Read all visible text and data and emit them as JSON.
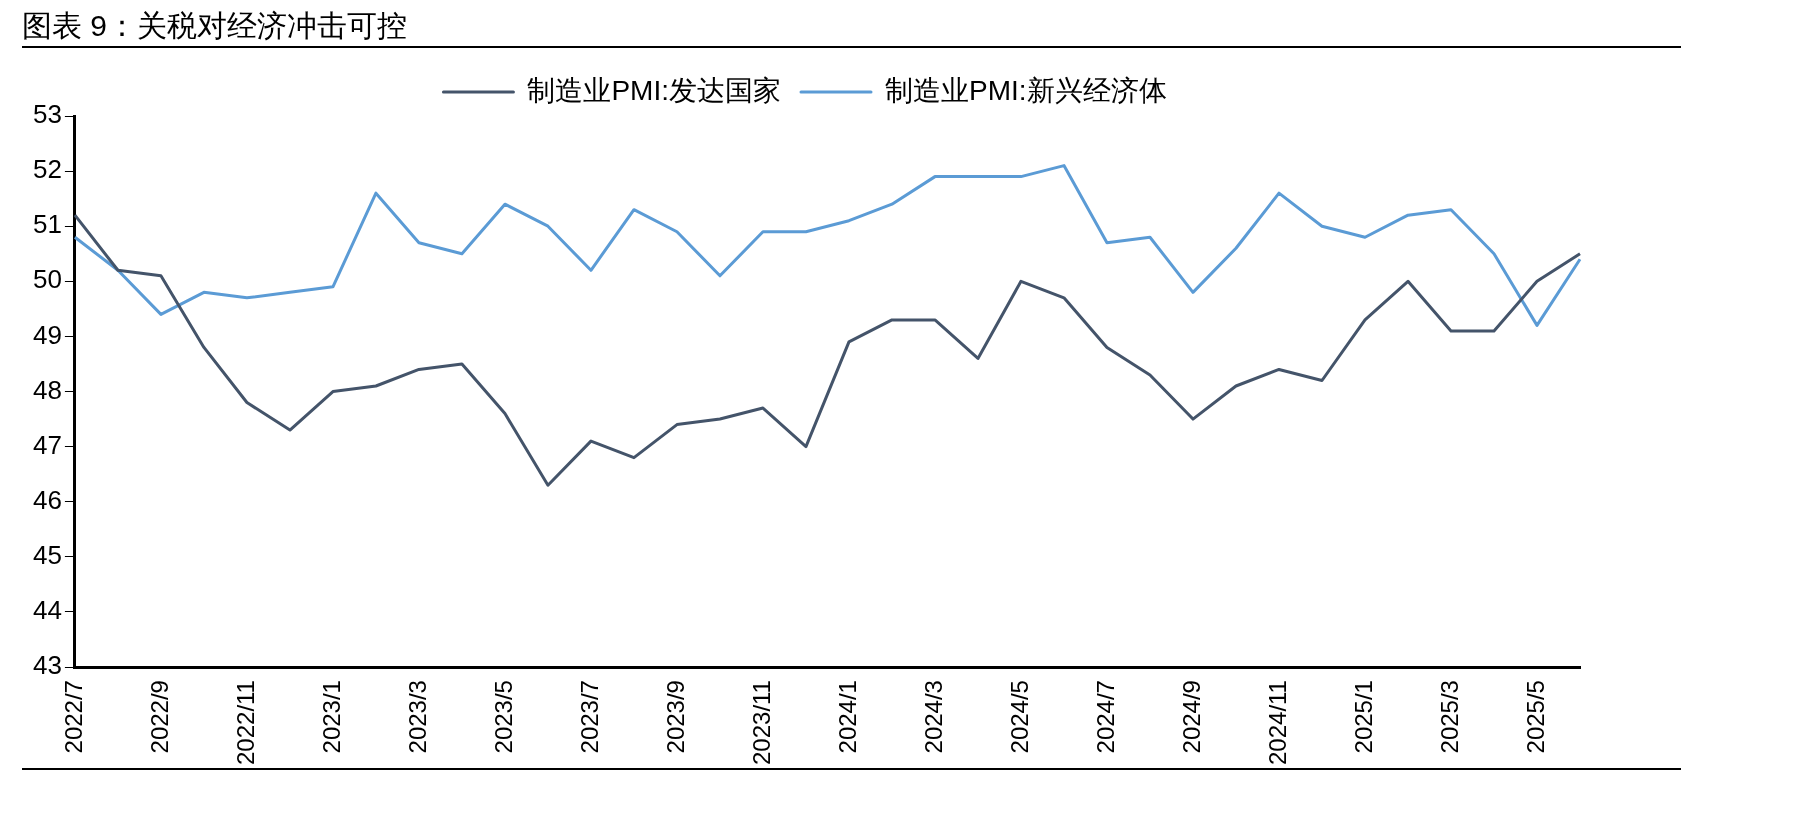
{
  "chart_data": {
    "type": "line",
    "title": "图表 9：关税对经济冲击可控",
    "categories": [
      "2022/7",
      null,
      "2022/9",
      null,
      "2022/11",
      null,
      "2023/1",
      null,
      "2023/3",
      null,
      "2023/5",
      null,
      "2023/7",
      null,
      "2023/9",
      null,
      "2023/11",
      null,
      "2024/1",
      null,
      "2024/3",
      null,
      "2024/5",
      null,
      "2024/7",
      null,
      "2024/9",
      null,
      "2024/11",
      null,
      "2025/1",
      null,
      "2025/3",
      null,
      "2025/5",
      null
    ],
    "series": [
      {
        "name": "制造业PMI:发达国家",
        "color": "#44546a",
        "values": [
          51.2,
          50.2,
          50.1,
          48.8,
          47.8,
          47.3,
          48.0,
          48.1,
          48.4,
          48.5,
          47.6,
          46.3,
          47.1,
          46.8,
          47.4,
          47.5,
          47.7,
          47.0,
          48.9,
          49.3,
          49.3,
          48.6,
          50.0,
          49.7,
          48.8,
          48.3,
          47.5,
          48.1,
          48.4,
          48.2,
          49.3,
          50.0,
          49.1,
          49.1,
          50.0,
          50.5
        ]
      },
      {
        "name": "制造业PMI:新兴经济体",
        "color": "#5b9bd5",
        "values": [
          50.8,
          50.2,
          49.4,
          49.8,
          49.7,
          49.8,
          49.9,
          51.6,
          50.7,
          50.5,
          51.4,
          51.0,
          50.2,
          51.3,
          50.9,
          50.1,
          50.9,
          50.9,
          51.1,
          51.4,
          51.9,
          51.9,
          51.9,
          52.1,
          50.7,
          50.8,
          49.8,
          50.6,
          51.6,
          51.0,
          50.8,
          51.2,
          51.3,
          50.5,
          49.2,
          50.4
        ]
      }
    ],
    "ylim": [
      43,
      53
    ],
    "yticks": [
      43,
      44,
      45,
      46,
      47,
      48,
      49,
      50,
      51,
      52,
      53
    ],
    "grid": false,
    "legend": "top",
    "marker": "none",
    "line_style": "solid"
  }
}
